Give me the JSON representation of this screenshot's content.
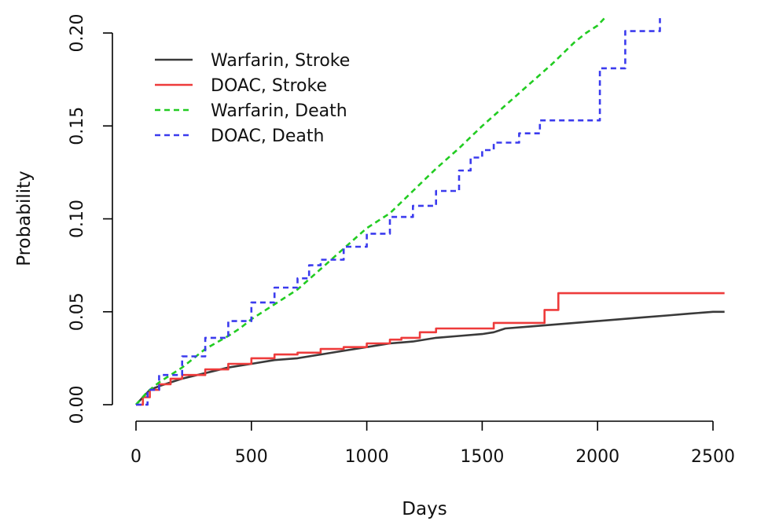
{
  "chart_data": {
    "type": "line",
    "title": "",
    "xlabel": "Days",
    "ylabel": "Probability",
    "xlim": [
      0,
      2600
    ],
    "ylim": [
      0,
      0.2
    ],
    "xticks": [
      0,
      500,
      1000,
      1500,
      2000,
      2500
    ],
    "yticks": [
      0.0,
      0.05,
      0.1,
      0.15,
      0.2
    ],
    "ytick_labels": [
      "0.00",
      "0.05",
      "0.10",
      "0.15",
      "0.20"
    ],
    "grid": false,
    "legend_position": "top-left",
    "series": [
      {
        "name": "Warfarin, Stroke",
        "color": "#3a3a3a",
        "dash": "solid",
        "points": [
          [
            0,
            0
          ],
          [
            30,
            0.004
          ],
          [
            60,
            0.008
          ],
          [
            100,
            0.01
          ],
          [
            150,
            0.012
          ],
          [
            200,
            0.014
          ],
          [
            300,
            0.017
          ],
          [
            400,
            0.02
          ],
          [
            500,
            0.022
          ],
          [
            600,
            0.024
          ],
          [
            700,
            0.025
          ],
          [
            800,
            0.027
          ],
          [
            900,
            0.029
          ],
          [
            1000,
            0.031
          ],
          [
            1100,
            0.033
          ],
          [
            1200,
            0.034
          ],
          [
            1300,
            0.036
          ],
          [
            1400,
            0.037
          ],
          [
            1500,
            0.038
          ],
          [
            1550,
            0.039
          ],
          [
            1600,
            0.041
          ],
          [
            1700,
            0.042
          ],
          [
            1800,
            0.043
          ],
          [
            1900,
            0.044
          ],
          [
            2000,
            0.045
          ],
          [
            2100,
            0.046
          ],
          [
            2200,
            0.047
          ],
          [
            2300,
            0.048
          ],
          [
            2400,
            0.049
          ],
          [
            2500,
            0.05
          ],
          [
            2550,
            0.05
          ]
        ]
      },
      {
        "name": "DOAC, Stroke",
        "color": "#ee3b3b",
        "dash": "solid",
        "steps": true,
        "points": [
          [
            0,
            0
          ],
          [
            30,
            0.004
          ],
          [
            60,
            0.008
          ],
          [
            100,
            0.011
          ],
          [
            150,
            0.014
          ],
          [
            200,
            0.016
          ],
          [
            300,
            0.019
          ],
          [
            400,
            0.022
          ],
          [
            500,
            0.025
          ],
          [
            600,
            0.027
          ],
          [
            700,
            0.028
          ],
          [
            800,
            0.03
          ],
          [
            900,
            0.031
          ],
          [
            1000,
            0.033
          ],
          [
            1100,
            0.035
          ],
          [
            1150,
            0.036
          ],
          [
            1220,
            0.036
          ],
          [
            1230,
            0.039
          ],
          [
            1290,
            0.039
          ],
          [
            1300,
            0.041
          ],
          [
            1540,
            0.041
          ],
          [
            1550,
            0.044
          ],
          [
            1760,
            0.044
          ],
          [
            1770,
            0.051
          ],
          [
            1820,
            0.051
          ],
          [
            1830,
            0.06
          ],
          [
            2550,
            0.06
          ]
        ]
      },
      {
        "name": "Warfarin, Death",
        "color": "#22cc22",
        "dash": "dashed",
        "points": [
          [
            0,
            0
          ],
          [
            50,
            0.007
          ],
          [
            100,
            0.012
          ],
          [
            200,
            0.02
          ],
          [
            300,
            0.03
          ],
          [
            400,
            0.037
          ],
          [
            450,
            0.041
          ],
          [
            500,
            0.046
          ],
          [
            600,
            0.054
          ],
          [
            700,
            0.062
          ],
          [
            800,
            0.073
          ],
          [
            900,
            0.084
          ],
          [
            1000,
            0.095
          ],
          [
            1100,
            0.103
          ],
          [
            1200,
            0.115
          ],
          [
            1300,
            0.127
          ],
          [
            1400,
            0.138
          ],
          [
            1500,
            0.15
          ],
          [
            1600,
            0.161
          ],
          [
            1700,
            0.172
          ],
          [
            1800,
            0.183
          ],
          [
            1900,
            0.195
          ],
          [
            1950,
            0.2
          ],
          [
            2000,
            0.204
          ],
          [
            2030,
            0.208
          ]
        ]
      },
      {
        "name": "DOAC, Death",
        "color": "#3b3bee",
        "dash": "dashed",
        "steps": true,
        "points": [
          [
            0,
            0
          ],
          [
            50,
            0.008
          ],
          [
            100,
            0.016
          ],
          [
            200,
            0.026
          ],
          [
            300,
            0.036
          ],
          [
            400,
            0.045
          ],
          [
            500,
            0.055
          ],
          [
            600,
            0.063
          ],
          [
            700,
            0.068
          ],
          [
            750,
            0.075
          ],
          [
            800,
            0.078
          ],
          [
            900,
            0.085
          ],
          [
            1000,
            0.092
          ],
          [
            1100,
            0.101
          ],
          [
            1200,
            0.107
          ],
          [
            1300,
            0.115
          ],
          [
            1400,
            0.126
          ],
          [
            1450,
            0.133
          ],
          [
            1500,
            0.137
          ],
          [
            1550,
            0.141
          ],
          [
            1650,
            0.141
          ],
          [
            1660,
            0.146
          ],
          [
            1740,
            0.146
          ],
          [
            1750,
            0.153
          ],
          [
            2000,
            0.153
          ],
          [
            2010,
            0.181
          ],
          [
            2110,
            0.181
          ],
          [
            2120,
            0.201
          ],
          [
            2260,
            0.201
          ],
          [
            2270,
            0.208
          ]
        ]
      }
    ]
  }
}
